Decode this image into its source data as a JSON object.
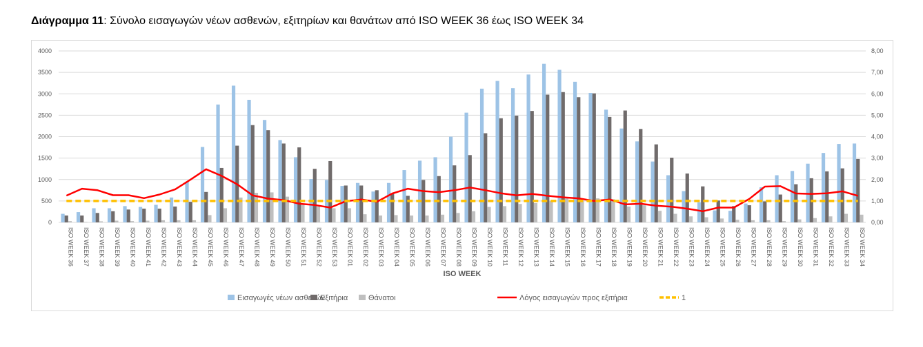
{
  "title": {
    "prefix": "Διάγραμμα 11",
    "text": ": Σύνολο εισαγωγών νέων ασθενών, εξιτηρίων και θανάτων από ISO WEEK 36 έως ISO WEEK 34"
  },
  "chart_data": {
    "type": "bar",
    "xlabel": "ISO WEEK",
    "ylim": [
      0,
      4000
    ],
    "y2lim": [
      0,
      8
    ],
    "yticks": [
      "0",
      "500",
      "1000",
      "1500",
      "2000",
      "2500",
      "3000",
      "3500",
      "4000"
    ],
    "y2ticks": [
      "0,00",
      "1,00",
      "2,00",
      "3,00",
      "4,00",
      "5,00",
      "6,00",
      "7,00",
      "8,00"
    ],
    "grid": true,
    "legend_position": "bottom",
    "categories": [
      "ISO WEEK 36",
      "ISO WEEK 37",
      "ISO WEEK 38",
      "ISO WEEK 39",
      "ISO WEEK 40",
      "ISO WEEK 41",
      "ISO WEEK 42",
      "ISO WEEK 43",
      "ISO WEEK 44",
      "ISO WEEK 45",
      "ISO WEEK 46",
      "ISO WEEK 47",
      "ISO WEEK 48",
      "ISO WEEK 49",
      "ISO WEEK 50",
      "ISO WEEK 51",
      "ISO WEEK 52",
      "ISO WEEK 53",
      "ISO WEEK 01",
      "ISO WEEK 02",
      "ISO WEEK 03",
      "ISO WEEK 04",
      "ISO WEEK 05",
      "ISO WEEK 06",
      "ISO WEEK 07",
      "ISO WEEK 08",
      "ISO WEEK 09",
      "ISO WEEK 10",
      "ISO WEEK 11",
      "ISO WEEK 12",
      "ISO WEEK 13",
      "ISO WEEK 14",
      "ISO WEEK 15",
      "ISO WEEK 16",
      "ISO WEEK 17",
      "ISO WEEK 18",
      "ISO WEEK 19",
      "ISO WEEK 20",
      "ISO WEEK 21",
      "ISO WEEK 22",
      "ISO WEEK 23",
      "ISO WEEK 24",
      "ISO WEEK 25",
      "ISO WEEK 26",
      "ISO WEEK 27",
      "ISO WEEK 28",
      "ISO WEEK 29",
      "ISO WEEK 30",
      "ISO WEEK 31",
      "ISO WEEK 32",
      "ISO WEEK 33",
      "ISO WEEK 34"
    ],
    "series": [
      {
        "name": "Εισαγωγές νέων ασθενών",
        "type": "bar",
        "axis": "left",
        "color": "#9dc3e6",
        "values": [
          200,
          240,
          330,
          330,
          380,
          360,
          410,
          580,
          950,
          1760,
          2750,
          3190,
          2860,
          2390,
          1920,
          1520,
          1010,
          990,
          850,
          920,
          720,
          920,
          1220,
          1440,
          1520,
          2000,
          2560,
          3120,
          3300,
          3130,
          3450,
          3700,
          3560,
          3280,
          3020,
          2630,
          2190,
          1890,
          1420,
          1100,
          730,
          470,
          280,
          270,
          440,
          820,
          1100,
          1200,
          1370,
          1620,
          1830,
          1840
        ]
      },
      {
        "name": "Εξιτήρια",
        "type": "bar",
        "axis": "left",
        "color": "#706b6b",
        "values": [
          160,
          160,
          220,
          260,
          300,
          320,
          320,
          370,
          480,
          710,
          1270,
          1790,
          2270,
          2150,
          1840,
          1750,
          1250,
          1430,
          860,
          860,
          750,
          680,
          620,
          990,
          1080,
          1330,
          1570,
          2080,
          2430,
          2490,
          2600,
          2980,
          3040,
          2920,
          3010,
          2460,
          2610,
          2180,
          1820,
          1510,
          1140,
          840,
          510,
          380,
          400,
          490,
          650,
          890,
          1030,
          1190,
          1260,
          1480
        ]
      },
      {
        "name": "Θάνατοι",
        "type": "bar",
        "axis": "left",
        "color": "#bfbfbf",
        "values": [
          30,
          10,
          25,
          40,
          30,
          40,
          50,
          50,
          50,
          170,
          330,
          580,
          690,
          700,
          600,
          430,
          370,
          330,
          330,
          190,
          160,
          170,
          160,
          160,
          180,
          220,
          260,
          360,
          380,
          430,
          450,
          500,
          560,
          510,
          560,
          540,
          370,
          400,
          270,
          200,
          140,
          120,
          90,
          60,
          50,
          50,
          30,
          70,
          100,
          140,
          200,
          180
        ]
      },
      {
        "name": "Λόγος εισαγωγών προς εξιτήρια",
        "type": "line",
        "axis": "right",
        "color": "#ff0000",
        "values": [
          1.25,
          1.57,
          1.5,
          1.27,
          1.27,
          1.13,
          1.3,
          1.54,
          2.0,
          2.48,
          2.17,
          1.78,
          1.26,
          1.11,
          1.04,
          0.87,
          0.81,
          0.69,
          0.99,
          1.07,
          0.96,
          1.35,
          1.57,
          1.46,
          1.41,
          1.5,
          1.63,
          1.5,
          1.36,
          1.26,
          1.33,
          1.24,
          1.17,
          1.12,
          1.0,
          1.07,
          0.84,
          0.87,
          0.78,
          0.73,
          0.64,
          0.52,
          0.69,
          0.69,
          1.1,
          1.67,
          1.69,
          1.35,
          1.33,
          1.36,
          1.45,
          1.24
        ]
      },
      {
        "name": "1",
        "type": "line",
        "axis": "right",
        "dashed": true,
        "color": "#ffc000",
        "values": [
          1,
          1,
          1,
          1,
          1,
          1,
          1,
          1,
          1,
          1,
          1,
          1,
          1,
          1,
          1,
          1,
          1,
          1,
          1,
          1,
          1,
          1,
          1,
          1,
          1,
          1,
          1,
          1,
          1,
          1,
          1,
          1,
          1,
          1,
          1,
          1,
          1,
          1,
          1,
          1,
          1,
          1,
          1,
          1,
          1,
          1,
          1,
          1,
          1,
          1,
          1,
          1
        ]
      }
    ]
  }
}
